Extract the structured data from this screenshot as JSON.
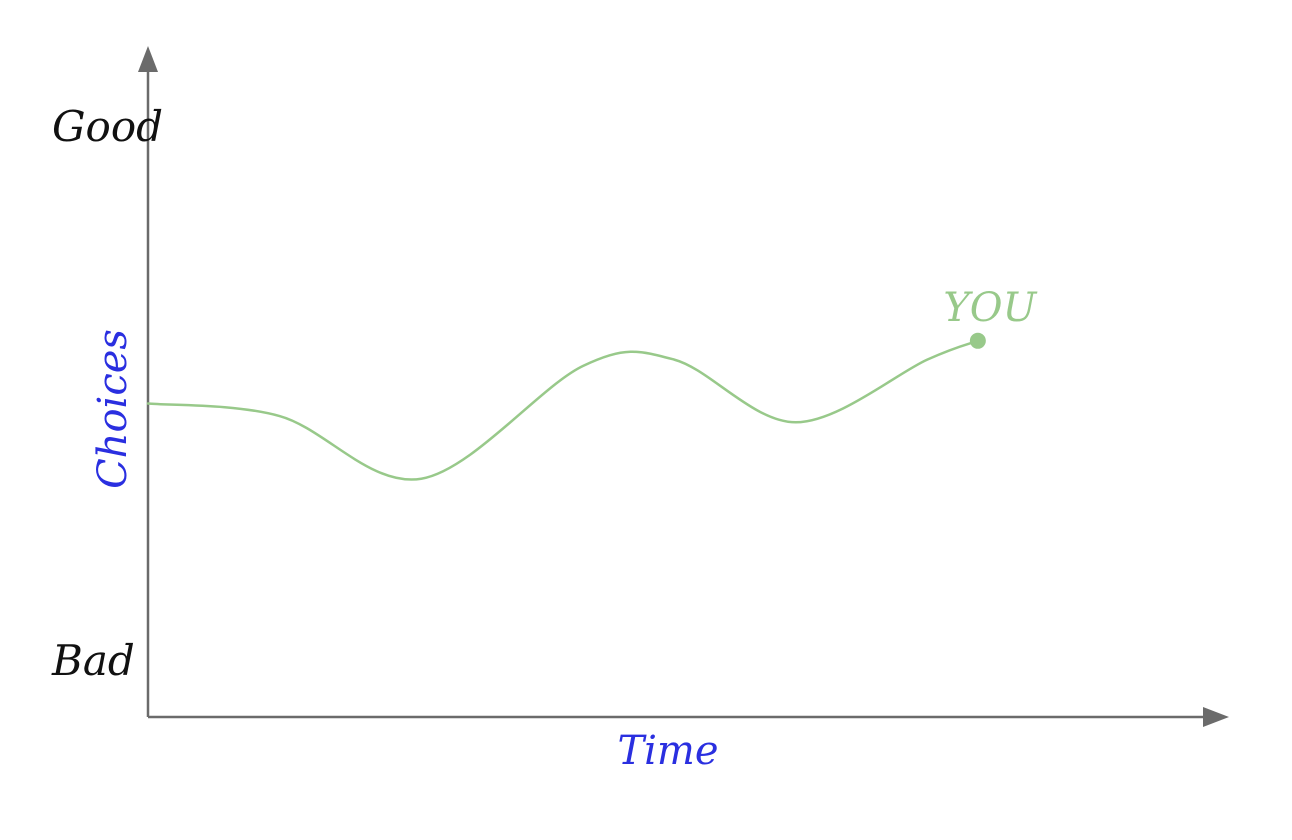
{
  "chart_data": {
    "type": "line",
    "xlabel": "Time",
    "ylabel": "Choices",
    "y_top_label": "Good",
    "y_bottom_label": "Bad",
    "xlim": [
      0,
      100
    ],
    "ylim": [
      0,
      100
    ],
    "grid": false,
    "series": [
      {
        "name": "YOU",
        "color": "#98c98a",
        "points": [
          {
            "x": 0,
            "y": 50
          },
          {
            "x": 13,
            "y": 48
          },
          {
            "x": 27,
            "y": 38
          },
          {
            "x": 43,
            "y": 56
          },
          {
            "x": 52,
            "y": 57
          },
          {
            "x": 64,
            "y": 47
          },
          {
            "x": 77,
            "y": 57
          },
          {
            "x": 82,
            "y": 60
          }
        ]
      }
    ]
  },
  "colors": {
    "axis": "#6b6b6b",
    "axis_label": "#2a2fe0",
    "range_label": "#111111",
    "series": "#98c98a"
  }
}
